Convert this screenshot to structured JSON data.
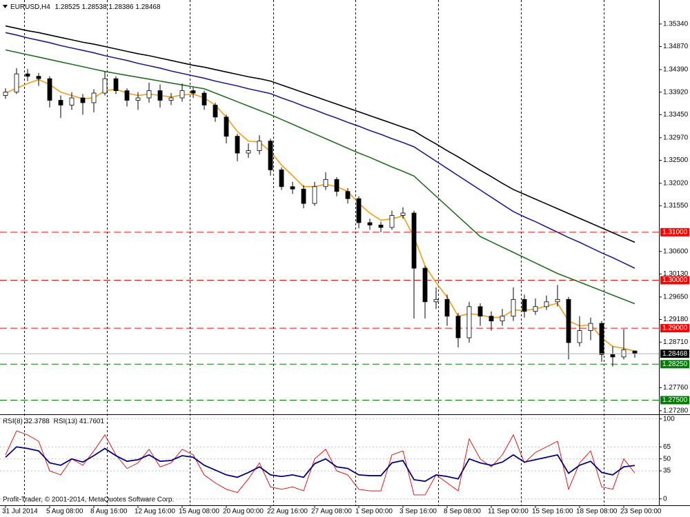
{
  "chart_data": [
    {
      "type": "candlestick",
      "title": "EURUSD,H4",
      "categories": [
        "31 Jul 2014",
        null,
        null,
        null,
        "5 Aug 08:00",
        null,
        null,
        null,
        "8 Aug 16:00",
        null,
        null,
        null,
        "12 Aug 16:00",
        null,
        null,
        null,
        "15 Aug 08:00",
        null,
        null,
        null,
        "20 Aug 00:00",
        null,
        null,
        null,
        "22 Aug 16:00",
        null,
        null,
        null,
        "27 Aug 08:00",
        null,
        null,
        null,
        "1 Sep 00:00",
        null,
        null,
        null,
        "3 Sep 16:00",
        null,
        null,
        null,
        "8 Sep 08:00",
        null,
        null,
        null,
        "11 Sep 00:00",
        null,
        null,
        null,
        "15 Sep 16:00",
        null,
        null,
        null,
        "18 Sep 08:00",
        null,
        null,
        null,
        "23 Sep 00:00",
        null
      ],
      "open": [
        1.3385,
        1.3392,
        1.343,
        1.3425,
        1.342,
        1.3375,
        1.3365,
        1.338,
        1.337,
        1.339,
        1.342,
        1.3395,
        1.3375,
        1.338,
        1.3395,
        1.3375,
        1.338,
        1.3395,
        1.339,
        1.3365,
        1.334,
        1.33,
        1.3265,
        1.327,
        1.329,
        1.323,
        1.3195,
        1.319,
        1.316,
        1.3195,
        1.321,
        1.3185,
        1.317,
        1.312,
        1.3115,
        1.311,
        1.3135,
        1.314,
        1.3025,
        1.2955,
        1.296,
        1.2925,
        1.288,
        1.2945,
        1.2925,
        1.2915,
        1.2925,
        1.296,
        1.2935,
        1.2945,
        1.2955,
        1.296,
        1.287,
        1.2895,
        1.291,
        1.2845,
        1.284,
        1.28525
      ],
      "high": [
        1.34,
        1.3442,
        1.344,
        1.3432,
        1.3425,
        1.3385,
        1.3392,
        1.3388,
        1.3398,
        1.3435,
        1.3425,
        1.34,
        1.3392,
        1.3412,
        1.3408,
        1.339,
        1.341,
        1.3402,
        1.3395,
        1.337,
        1.3345,
        1.3305,
        1.3285,
        1.3302,
        1.3295,
        1.3235,
        1.3205,
        1.3198,
        1.3205,
        1.3225,
        1.3215,
        1.3192,
        1.3175,
        1.3128,
        1.3122,
        1.3145,
        1.3152,
        1.3145,
        1.303,
        1.2985,
        1.297,
        1.2932,
        1.2955,
        1.2952,
        1.2935,
        1.294,
        1.2985,
        1.297,
        1.2962,
        1.2968,
        1.299,
        1.2965,
        1.2925,
        1.2922,
        1.2915,
        1.2862,
        1.2898,
        1.28538
      ],
      "low": [
        1.3378,
        1.3388,
        1.3415,
        1.3405,
        1.336,
        1.3338,
        1.3355,
        1.3345,
        1.335,
        1.3385,
        1.3388,
        1.3362,
        1.3355,
        1.337,
        1.336,
        1.3365,
        1.3372,
        1.338,
        1.3355,
        1.333,
        1.3285,
        1.3248,
        1.3255,
        1.3262,
        1.3218,
        1.3188,
        1.318,
        1.315,
        1.3155,
        1.3188,
        1.3175,
        1.316,
        1.3108,
        1.3105,
        1.31,
        1.3105,
        1.3128,
        1.292,
        1.292,
        1.294,
        1.2905,
        1.286,
        1.287,
        1.2905,
        1.2895,
        1.2905,
        1.2915,
        1.2922,
        1.2928,
        1.2938,
        1.2945,
        1.2835,
        1.2862,
        1.2875,
        1.283,
        1.282,
        1.2835,
        1.28386
      ],
      "close": [
        1.3392,
        1.343,
        1.3425,
        1.342,
        1.3375,
        1.3365,
        1.338,
        1.337,
        1.339,
        1.342,
        1.3395,
        1.3375,
        1.338,
        1.3395,
        1.3375,
        1.338,
        1.3395,
        1.339,
        1.3365,
        1.334,
        1.33,
        1.3265,
        1.327,
        1.329,
        1.323,
        1.3195,
        1.319,
        1.316,
        1.3195,
        1.321,
        1.3185,
        1.317,
        1.312,
        1.3115,
        1.311,
        1.3135,
        1.314,
        1.3025,
        1.2955,
        1.296,
        1.2925,
        1.288,
        1.2945,
        1.2925,
        1.2915,
        1.2925,
        1.296,
        1.2935,
        1.2945,
        1.2955,
        1.296,
        1.287,
        1.2895,
        1.291,
        1.2845,
        1.284,
        1.2855,
        1.28468
      ],
      "up_color": "#ffffff",
      "down_color": "#000000",
      "moving_averages": [
        {
          "color": "#000000",
          "values": [
            1.353,
            1.3525,
            1.352,
            1.3516,
            1.3511,
            1.3506,
            1.3501,
            1.3496,
            1.3492,
            1.3487,
            1.3482,
            1.3477,
            1.3472,
            1.3468,
            1.3463,
            1.3458,
            1.3453,
            1.3448,
            1.3444,
            1.3439,
            1.3434,
            1.3429,
            1.3424,
            1.342,
            1.3415,
            1.3407,
            1.3399,
            1.3391,
            1.3383,
            1.3375,
            1.3367,
            1.3359,
            1.3351,
            1.3343,
            1.3335,
            1.3327,
            1.3319,
            1.3311,
            1.3297,
            1.3284,
            1.327,
            1.3257,
            1.3243,
            1.3229,
            1.3216,
            1.3202,
            1.3189,
            1.3179,
            1.3169,
            1.3159,
            1.3149,
            1.3139,
            1.3129,
            1.3119,
            1.3109,
            1.3099,
            1.3089,
            1.3079
          ]
        },
        {
          "color": "#1c1c8c",
          "values": [
            1.3516,
            1.3511,
            1.3505,
            1.35,
            1.3495,
            1.3489,
            1.3484,
            1.3479,
            1.3474,
            1.3468,
            1.3463,
            1.3458,
            1.3452,
            1.3447,
            1.3442,
            1.3436,
            1.3431,
            1.3426,
            1.3421,
            1.3415,
            1.341,
            1.3405,
            1.3399,
            1.3394,
            1.3389,
            1.338,
            1.3372,
            1.3363,
            1.3355,
            1.3346,
            1.3338,
            1.3329,
            1.3321,
            1.3312,
            1.3304,
            1.3295,
            1.3287,
            1.3278,
            1.3263,
            1.3248,
            1.3233,
            1.3218,
            1.3203,
            1.3188,
            1.3173,
            1.3158,
            1.3143,
            1.3132,
            1.3122,
            1.3111,
            1.31,
            1.3089,
            1.3079,
            1.3068,
            1.3057,
            1.3047,
            1.3036,
            1.3025
          ]
        },
        {
          "color": "#1e6e1e",
          "values": [
            1.348,
            1.3475,
            1.347,
            1.3465,
            1.346,
            1.3455,
            1.345,
            1.3445,
            1.344,
            1.3435,
            1.3431,
            1.3427,
            1.3423,
            1.3419,
            1.3415,
            1.3411,
            1.3407,
            1.3403,
            1.3399,
            1.339,
            1.3381,
            1.3372,
            1.3363,
            1.3354,
            1.3345,
            1.3335,
            1.3325,
            1.3315,
            1.3305,
            1.3295,
            1.3285,
            1.3275,
            1.3265,
            1.3256,
            1.3246,
            1.3236,
            1.3227,
            1.3217,
            1.3196,
            1.3175,
            1.3154,
            1.3133,
            1.3112,
            1.3091,
            1.308,
            1.3069,
            1.3058,
            1.3047,
            1.3036,
            1.3025,
            1.3014,
            1.3005,
            1.2996,
            1.2987,
            1.2978,
            1.2969,
            1.296,
            1.2951
          ]
        },
        {
          "color": "#f39c12",
          "values": [
            1.339,
            1.34,
            1.341,
            1.3418,
            1.3408,
            1.3392,
            1.3385,
            1.3378,
            1.338,
            1.3395,
            1.3398,
            1.339,
            1.3385,
            1.3388,
            1.3385,
            1.3382,
            1.3386,
            1.3388,
            1.338,
            1.3365,
            1.334,
            1.331,
            1.329,
            1.3288,
            1.3268,
            1.324,
            1.3218,
            1.3195,
            1.3195,
            1.32,
            1.3195,
            1.3185,
            1.316,
            1.314,
            1.3125,
            1.3128,
            1.3134,
            1.309,
            1.303,
            1.2995,
            1.2965,
            1.2925,
            1.293,
            1.2928,
            1.2922,
            1.2923,
            1.2938,
            1.2937,
            1.294,
            1.2946,
            1.2952,
            1.2915,
            1.2905,
            1.2907,
            1.288,
            1.2862,
            1.2858,
            1.2852
          ]
        }
      ],
      "ylim": [
        1.2722,
        1.3584
      ],
      "yticks": [
        {
          "value": 1.3534,
          "label": "1.35340"
        },
        {
          "value": 1.3487,
          "label": "1.34870"
        },
        {
          "value": 1.3439,
          "label": "1.34390"
        },
        {
          "value": 1.3392,
          "label": "1.33920"
        },
        {
          "value": 1.3345,
          "label": "1.33450"
        },
        {
          "value": 1.3297,
          "label": "1.32970"
        },
        {
          "value": 1.325,
          "label": "1.32500"
        },
        {
          "value": 1.3202,
          "label": "1.32020"
        },
        {
          "value": 1.3155,
          "label": "1.31550"
        },
        {
          "value": 1.306,
          "label": "1.30600"
        },
        {
          "value": 1.3013,
          "label": "1.30130"
        },
        {
          "value": 1.2965,
          "label": "1.29650"
        },
        {
          "value": 1.2918,
          "label": "1.29180"
        },
        {
          "value": 1.2871,
          "label": "1.28710"
        },
        {
          "value": 1.2776,
          "label": "1.27760"
        },
        {
          "value": 1.2728,
          "label": "1.27280"
        }
      ],
      "levels": [
        {
          "value": 1.31,
          "label": "1.31000",
          "color": "#ff0000"
        },
        {
          "value": 1.3,
          "label": "1.30000",
          "color": "#ff0000"
        },
        {
          "value": 1.29,
          "label": "1.29000",
          "color": "#ff0000"
        },
        {
          "value": 1.2825,
          "label": "1.28250",
          "color": "#008000"
        },
        {
          "value": 1.275,
          "label": "1.27500",
          "color": "#008000"
        }
      ],
      "grid": false
    },
    {
      "type": "line",
      "series": [
        {
          "name": "RSI(8)",
          "color": "#e00000",
          "values": [
            55,
            85,
            80,
            72,
            35,
            30,
            50,
            42,
            60,
            80,
            55,
            38,
            45,
            62,
            40,
            45,
            62,
            55,
            30,
            20,
            12,
            8,
            25,
            45,
            15,
            12,
            15,
            10,
            50,
            62,
            35,
            30,
            12,
            10,
            10,
            55,
            60,
            5,
            5,
            30,
            20,
            10,
            75,
            50,
            40,
            55,
            80,
            45,
            58,
            65,
            72,
            12,
            45,
            60,
            15,
            12,
            50,
            32.3788
          ]
        },
        {
          "name": "RSI(13)",
          "color": "#000080",
          "values": [
            52,
            65,
            63,
            60,
            45,
            42,
            50,
            46,
            54,
            63,
            54,
            47,
            49,
            55,
            47,
            48,
            54,
            52,
            42,
            36,
            30,
            27,
            33,
            40,
            30,
            28,
            30,
            27,
            44,
            50,
            40,
            38,
            30,
            29,
            29,
            45,
            48,
            24,
            22,
            30,
            28,
            25,
            50,
            45,
            42,
            46,
            55,
            46,
            49,
            52,
            55,
            32,
            42,
            47,
            33,
            30,
            40,
            41.7601
          ]
        }
      ],
      "ylim": [
        -8,
        104
      ],
      "yticks": [
        100,
        65,
        50,
        35,
        0
      ],
      "grid": true,
      "footer": "Profit-Trader, © 2001-2014, MetaQuotes Software Corp."
    }
  ]
}
